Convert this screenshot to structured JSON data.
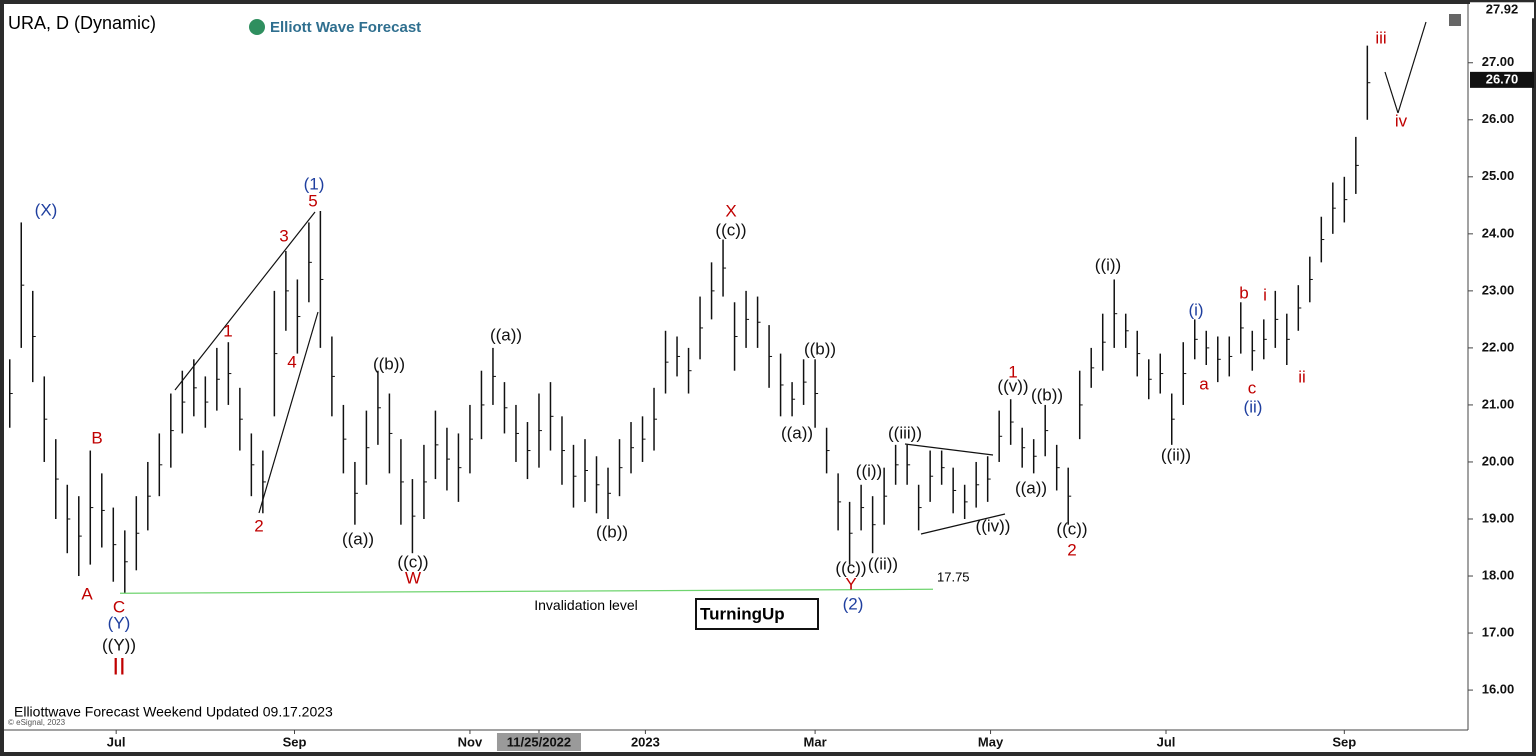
{
  "chart_data": {
    "type": "range-bars",
    "title": "URA, D (Dynamic)",
    "brand": "Elliott Wave Forecast",
    "footer": "Elliottwave Forecast Weekend Updated 09.17.2023",
    "copyright": "© eSignal, 2023",
    "badge": "TurningUp",
    "bar_color": "#111111",
    "bars": {
      "x": [
        -7,
        -3,
        1,
        5,
        9,
        13,
        17,
        21,
        25,
        29,
        33,
        37,
        41,
        45,
        49,
        53,
        57,
        61,
        65,
        69,
        73,
        77,
        81,
        85,
        89,
        93,
        97,
        101,
        105,
        109,
        113,
        117,
        121,
        125,
        129,
        133,
        137,
        141,
        145,
        149,
        153,
        157,
        161,
        165,
        169,
        173,
        177,
        181,
        185,
        189,
        193,
        197,
        201,
        205,
        209,
        213,
        217,
        221,
        225,
        229,
        233,
        237,
        241,
        245,
        249,
        253,
        257,
        261,
        265,
        269,
        273,
        277,
        281,
        285,
        289,
        293,
        297,
        301,
        305,
        309,
        313,
        317,
        321,
        325,
        329,
        333,
        337,
        341,
        345,
        349,
        353,
        357,
        361,
        365,
        369,
        373,
        377,
        381,
        385,
        389,
        393,
        397,
        401,
        405,
        409,
        413,
        417,
        421,
        425,
        429,
        433,
        437,
        441,
        445,
        449,
        453,
        457,
        461,
        465
      ],
      "low": [
        20.6,
        22.0,
        21.4,
        20.0,
        19.0,
        18.4,
        18.0,
        18.2,
        18.5,
        17.9,
        17.7,
        18.1,
        18.8,
        19.4,
        19.9,
        20.5,
        20.8,
        20.6,
        20.9,
        21.0,
        20.2,
        19.4,
        19.1,
        20.8,
        22.3,
        21.9,
        22.8,
        22.0,
        20.8,
        19.8,
        18.9,
        19.6,
        20.3,
        19.8,
        18.9,
        18.4,
        19.0,
        19.7,
        19.5,
        19.3,
        19.8,
        20.4,
        21.0,
        20.5,
        20.0,
        19.7,
        19.9,
        20.2,
        19.6,
        19.2,
        19.3,
        19.1,
        19.0,
        19.4,
        19.8,
        20.0,
        20.2,
        21.2,
        21.5,
        21.2,
        21.8,
        22.5,
        22.9,
        21.6,
        22.0,
        22.0,
        21.3,
        20.8,
        20.8,
        21.0,
        20.6,
        19.8,
        18.8,
        18.2,
        18.8,
        18.4,
        18.9,
        19.6,
        19.6,
        18.8,
        19.3,
        19.6,
        19.1,
        19.0,
        19.2,
        19.3,
        20.0,
        20.3,
        19.9,
        19.8,
        20.1,
        19.5,
        18.9,
        20.4,
        21.3,
        21.6,
        22.0,
        22.0,
        21.5,
        21.1,
        21.2,
        20.3,
        21.0,
        21.8,
        21.7,
        21.4,
        21.5,
        21.9,
        21.6,
        21.8,
        22.0,
        21.7,
        22.3,
        22.8,
        23.5,
        24.0,
        24.2,
        24.7,
        26.0
      ],
      "high": [
        21.8,
        24.2,
        23.0,
        21.5,
        20.4,
        19.6,
        19.4,
        20.2,
        19.8,
        19.2,
        18.8,
        19.4,
        20.0,
        20.5,
        21.2,
        21.6,
        21.8,
        21.5,
        22.0,
        22.1,
        21.3,
        20.5,
        20.2,
        23.0,
        23.7,
        23.2,
        24.2,
        24.4,
        22.2,
        21.0,
        20.0,
        20.9,
        21.6,
        21.2,
        20.4,
        19.7,
        20.3,
        20.9,
        20.6,
        20.5,
        21.0,
        21.6,
        22.0,
        21.4,
        21.0,
        20.7,
        21.2,
        21.4,
        20.8,
        20.3,
        20.4,
        20.1,
        19.9,
        20.4,
        20.7,
        20.8,
        21.3,
        22.3,
        22.2,
        22.0,
        22.9,
        23.5,
        23.9,
        22.8,
        23.0,
        22.9,
        22.4,
        21.9,
        21.4,
        21.8,
        21.8,
        20.6,
        19.8,
        19.3,
        19.6,
        19.4,
        19.9,
        20.3,
        20.3,
        19.6,
        20.2,
        20.2,
        19.9,
        19.6,
        20.0,
        20.1,
        20.9,
        21.1,
        20.6,
        20.4,
        21.0,
        20.3,
        19.9,
        21.6,
        22.0,
        22.6,
        23.2,
        22.6,
        22.3,
        21.8,
        21.9,
        21.2,
        22.1,
        22.5,
        22.3,
        22.2,
        22.2,
        22.8,
        22.3,
        22.5,
        23.0,
        22.6,
        23.1,
        23.6,
        24.3,
        24.9,
        25.0,
        25.7,
        27.3
      ]
    },
    "xlim": [
      -9,
      500
    ],
    "xticks": [
      {
        "value": 30,
        "label": "Jul"
      },
      {
        "value": 92,
        "label": "Sep"
      },
      {
        "value": 153,
        "label": "Nov"
      },
      {
        "value": 177,
        "label": "11/25/2022"
      },
      {
        "value": 214,
        "label": "2023"
      },
      {
        "value": 273,
        "label": "Mar"
      },
      {
        "value": 334,
        "label": "May"
      },
      {
        "value": 395,
        "label": "Jul"
      },
      {
        "value": 457,
        "label": "Sep"
      }
    ],
    "ylim": [
      15.3,
      27.96
    ],
    "yticks": [
      {
        "value": 16,
        "label": "16.00"
      },
      {
        "value": 17,
        "label": "17.00"
      },
      {
        "value": 18,
        "label": "18.00"
      },
      {
        "value": 19,
        "label": "19.00"
      },
      {
        "value": 20,
        "label": "20.00"
      },
      {
        "value": 21,
        "label": "21.00"
      },
      {
        "value": 22,
        "label": "22.00"
      },
      {
        "value": 23,
        "label": "23.00"
      },
      {
        "value": 24,
        "label": "24.00"
      },
      {
        "value": 25,
        "label": "25.00"
      },
      {
        "value": 26,
        "label": "26.00"
      },
      {
        "value": 27,
        "label": "27.00"
      }
    ],
    "top_price": {
      "value": 27.92,
      "label": "27.92"
    },
    "last_price": {
      "value": 26.7,
      "label": "26.70"
    },
    "invalidation": {
      "value": 17.75,
      "label": "17.75",
      "text": "Invalidation level",
      "color": "#6fd46f"
    },
    "annotations": [
      {
        "text": "(X)",
        "color": "#1f3f9f"
      },
      {
        "text": "B",
        "color": "#c00000"
      },
      {
        "text": "A",
        "color": "#c00000"
      },
      {
        "text": "C",
        "color": "#c00000"
      },
      {
        "text": "(Y)",
        "color": "#1f3f9f"
      },
      {
        "text": "((Y))",
        "color": "#111111"
      },
      {
        "text": "II",
        "color": "#c00000"
      },
      {
        "text": "1",
        "color": "#c00000"
      },
      {
        "text": "2",
        "color": "#c00000"
      },
      {
        "text": "3",
        "color": "#c00000"
      },
      {
        "text": "4",
        "color": "#c00000"
      },
      {
        "text": "5",
        "color": "#c00000"
      },
      {
        "text": "(1)",
        "color": "#1f3f9f"
      },
      {
        "text": "((a))",
        "color": "#111111"
      },
      {
        "text": "((b))",
        "color": "#111111"
      },
      {
        "text": "((c))",
        "color": "#111111"
      },
      {
        "text": "W",
        "color": "#c00000"
      },
      {
        "text": "((a))",
        "color": "#111111"
      },
      {
        "text": "((b))",
        "color": "#111111"
      },
      {
        "text": "X",
        "color": "#c00000"
      },
      {
        "text": "((c))",
        "color": "#111111"
      },
      {
        "text": "((b))",
        "color": "#111111"
      },
      {
        "text": "((a))",
        "color": "#111111"
      },
      {
        "text": "((i))",
        "color": "#111111"
      },
      {
        "text": "((ii))",
        "color": "#111111"
      },
      {
        "text": "((c))",
        "color": "#111111"
      },
      {
        "text": "Y",
        "color": "#c00000"
      },
      {
        "text": "(2)",
        "color": "#1f3f9f"
      },
      {
        "text": "((iii))",
        "color": "#111111"
      },
      {
        "text": "((iv))",
        "color": "#111111"
      },
      {
        "text": "1",
        "color": "#c00000"
      },
      {
        "text": "((v))",
        "color": "#111111"
      },
      {
        "text": "((b))",
        "color": "#111111"
      },
      {
        "text": "((a))",
        "color": "#111111"
      },
      {
        "text": "((c))",
        "color": "#111111"
      },
      {
        "text": "2",
        "color": "#c00000"
      },
      {
        "text": "((i))",
        "color": "#111111"
      },
      {
        "text": "((ii))",
        "color": "#111111"
      },
      {
        "text": "(i)",
        "color": "#1f3f9f"
      },
      {
        "text": "a",
        "color": "#c00000"
      },
      {
        "text": "b",
        "color": "#c00000"
      },
      {
        "text": "i",
        "color": "#c00000"
      },
      {
        "text": "c",
        "color": "#c00000"
      },
      {
        "text": "(ii)",
        "color": "#1f3f9f"
      },
      {
        "text": "ii",
        "color": "#c00000"
      },
      {
        "text": "iii",
        "color": "#c00000"
      },
      {
        "text": "iv",
        "color": "#c00000"
      }
    ]
  }
}
